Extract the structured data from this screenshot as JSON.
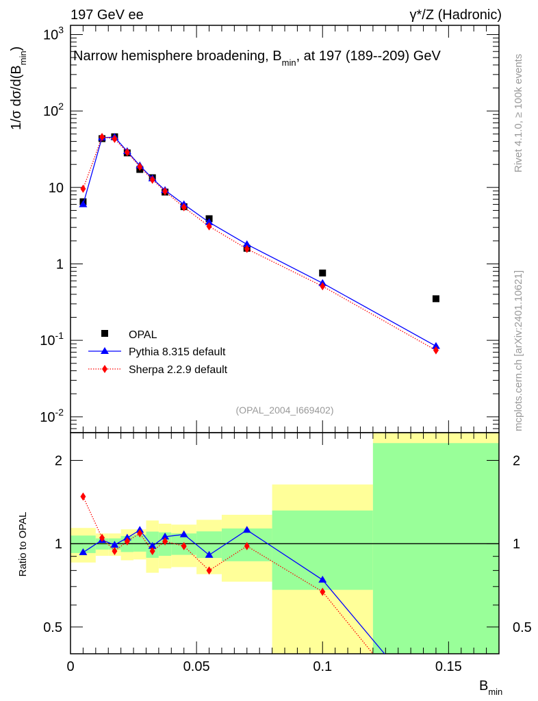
{
  "header": {
    "left": "197 GeV ee",
    "right": "γ*/Z (Hadronic)"
  },
  "side_text": {
    "upper": "Rivet 4.1.0, ≥ 100k events",
    "lower": "mcplots.cern.ch [arXiv:2401.10621]"
  },
  "colors": {
    "data": "#000000",
    "pythia": "#0000ff",
    "sherpa": "#ff0000",
    "band_inner": "#99ff99",
    "band_outer": "#ffff99"
  },
  "chart_data": [
    {
      "type": "line",
      "panel": "main",
      "title": "Narrow hemisphere broadening, B",
      "title_sub": "min",
      "title_rest": ", at 197 (189--209) GeV",
      "ylabel": "1/σ  dσ/d(B",
      "ylabel_sub": "min",
      "ylabel_end": ")",
      "yscale": "log",
      "ylim": [
        0.0062,
        1320
      ],
      "xlim": [
        0,
        0.17
      ],
      "yticks": [
        {
          "v": 0.01,
          "base": "10",
          "exp": "-2"
        },
        {
          "v": 0.1,
          "base": "10",
          "exp": "-1"
        },
        {
          "v": 1,
          "base": "1",
          "exp": ""
        },
        {
          "v": 10,
          "base": "10",
          "exp": ""
        },
        {
          "v": 100,
          "base": "10",
          "exp": "2"
        },
        {
          "v": 1000,
          "base": "10",
          "exp": "3"
        }
      ],
      "x": [
        0.005,
        0.0125,
        0.0175,
        0.0225,
        0.0275,
        0.0325,
        0.0375,
        0.045,
        0.055,
        0.07,
        0.1,
        0.145
      ],
      "series": [
        {
          "name": "OPAL",
          "marker": "square",
          "values": [
            6.5,
            43.5,
            46,
            28.3,
            17.2,
            13.4,
            8.7,
            5.6,
            3.9,
            1.6,
            0.76,
            0.35
          ]
        },
        {
          "name": "Pythia 8.315 default",
          "marker": "triangle",
          "values": [
            6.0,
            44.8,
            45.5,
            29.7,
            19.3,
            13.1,
            9.2,
            6.0,
            3.5,
            1.8,
            0.56,
            0.084
          ]
        },
        {
          "name": "Sherpa 2.2.9 default",
          "marker": "diamond",
          "values": [
            9.6,
            45.7,
            43.2,
            28.9,
            18.7,
            12.6,
            8.9,
            5.5,
            3.1,
            1.57,
            0.51,
            0.074
          ]
        }
      ],
      "legend_position": "lower-left",
      "annotation": "(OPAL_2004_I669402)"
    },
    {
      "type": "line",
      "panel": "ratio",
      "ylabel": "Ratio to OPAL",
      "xlabel": "B",
      "xlabel_sub": "min",
      "yscale": "log",
      "ylim": [
        0.4,
        2.52
      ],
      "xlim": [
        0,
        0.17
      ],
      "yticks": [
        {
          "v": 0.5,
          "label": "0.5"
        },
        {
          "v": 1,
          "label": "1"
        },
        {
          "v": 2,
          "label": "2"
        }
      ],
      "xticks": [
        {
          "v": 0,
          "label": "0"
        },
        {
          "v": 0.05,
          "label": "0.05"
        },
        {
          "v": 0.1,
          "label": "0.1"
        },
        {
          "v": 0.15,
          "label": "0.15"
        }
      ],
      "x": [
        0.005,
        0.0125,
        0.0175,
        0.0225,
        0.0275,
        0.0325,
        0.0375,
        0.045,
        0.055,
        0.07,
        0.1,
        0.145
      ],
      "series": [
        {
          "name": "Pythia 8.315 default",
          "values": [
            0.93,
            1.03,
            0.99,
            1.05,
            1.12,
            0.98,
            1.06,
            1.08,
            0.91,
            1.12,
            0.74,
            0.24
          ]
        },
        {
          "name": "Sherpa 2.2.9 default",
          "values": [
            1.48,
            1.05,
            0.94,
            1.02,
            1.09,
            0.94,
            1.02,
            0.98,
            0.8,
            0.98,
            0.67,
            0.21
          ]
        }
      ],
      "bands": [
        {
          "lo": 0,
          "hi": 0.01,
          "in": [
            0.925,
            1.07
          ],
          "out": [
            0.855,
            1.14
          ]
        },
        {
          "lo": 0.01,
          "hi": 0.015,
          "in": [
            0.952,
            1.045
          ],
          "out": [
            0.904,
            1.089
          ]
        },
        {
          "lo": 0.015,
          "hi": 0.02,
          "in": [
            0.952,
            1.045
          ],
          "out": [
            0.904,
            1.089
          ]
        },
        {
          "lo": 0.02,
          "hi": 0.025,
          "in": [
            0.933,
            1.066
          ],
          "out": [
            0.871,
            1.127
          ]
        },
        {
          "lo": 0.025,
          "hi": 0.03,
          "in": [
            0.936,
            1.078
          ],
          "out": [
            0.877,
            1.127
          ]
        },
        {
          "lo": 0.03,
          "hi": 0.035,
          "in": [
            0.889,
            1.106
          ],
          "out": [
            0.785,
            1.213
          ]
        },
        {
          "lo": 0.035,
          "hi": 0.04,
          "in": [
            0.904,
            1.099
          ],
          "out": [
            0.814,
            1.181
          ]
        },
        {
          "lo": 0.04,
          "hi": 0.05,
          "in": [
            0.911,
            1.089
          ],
          "out": [
            0.823,
            1.172
          ]
        },
        {
          "lo": 0.05,
          "hi": 0.06,
          "in": [
            0.888,
            1.108
          ],
          "out": [
            0.776,
            1.22
          ]
        },
        {
          "lo": 0.06,
          "hi": 0.08,
          "in": [
            0.864,
            1.135
          ],
          "out": [
            0.729,
            1.272
          ]
        },
        {
          "lo": 0.08,
          "hi": 0.12,
          "in": [
            0.681,
            1.318
          ],
          "out": [
            0.2,
            1.637
          ]
        },
        {
          "lo": 0.12,
          "hi": 0.17,
          "in": [
            0.2,
            2.31
          ],
          "out": [
            0.1,
            3.0
          ]
        }
      ]
    }
  ]
}
